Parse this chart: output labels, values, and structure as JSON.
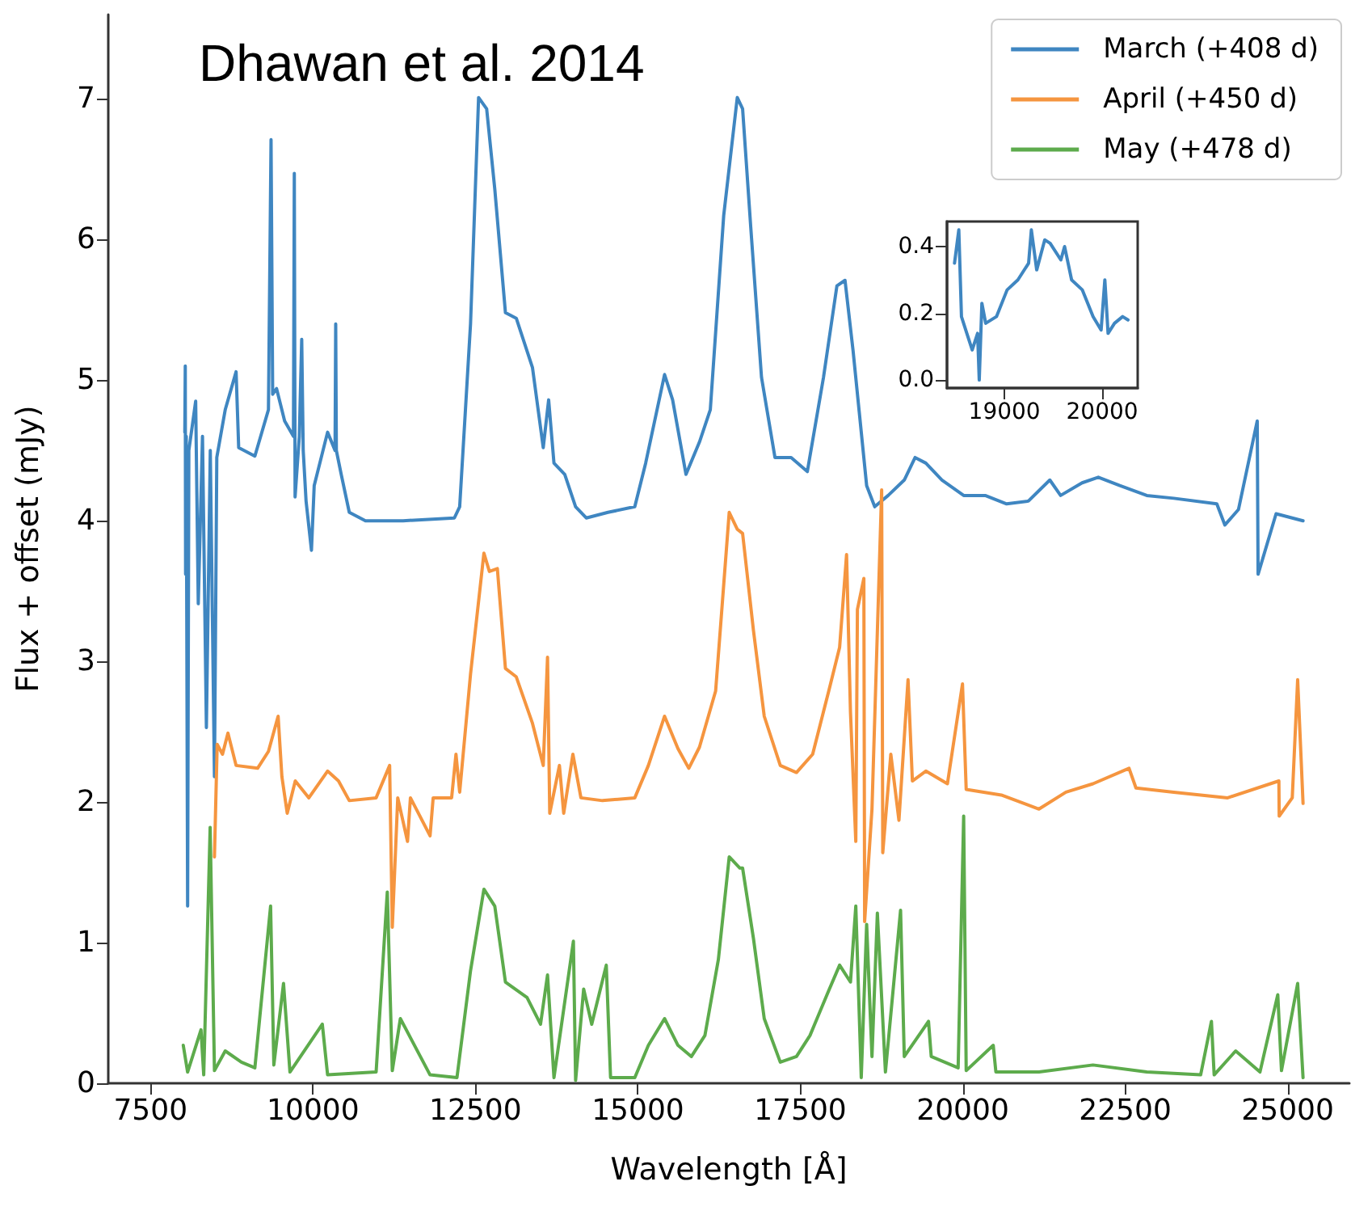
{
  "chart_data": [
    {
      "type": "line",
      "annotations": [
        "Dhawan et al. 2014"
      ],
      "xlabel": "Wavelength [Å]",
      "ylabel": "Flux + offset (mJy)",
      "xlim": [
        6850,
        25950
      ],
      "xticks": [
        7500,
        10000,
        12500,
        15000,
        17500,
        20000,
        22500,
        25000
      ],
      "ylim": [
        0,
        7.6
      ],
      "yticks": [
        0,
        1,
        2,
        3,
        4,
        5,
        6,
        7
      ],
      "grid": false,
      "legend": "top right",
      "marker": "none",
      "line_style": "solid",
      "series": [
        {
          "name": "March (+408 d)",
          "color": "#3f86c1",
          "x": [
            8028,
            8035,
            8040,
            8050,
            8071,
            8090,
            8195,
            8235,
            8300,
            8360,
            8420,
            8484,
            8520,
            8650,
            8817,
            8857,
            9106,
            9315,
            9355,
            9380,
            9440,
            9564,
            9700,
            9713,
            9725,
            9790,
            9827,
            9850,
            9894,
            9977,
            10019,
            10225,
            10340,
            10350,
            10360,
            10435,
            10559,
            10808,
            11387,
            12176,
            12258,
            12425,
            12549,
            12673,
            12798,
            12962,
            13129,
            13378,
            13544,
            13627,
            13709,
            13875,
            14042,
            14206,
            14540,
            14953,
            15120,
            15411,
            15535,
            15741,
            15948,
            16115,
            16321,
            16530,
            16612,
            16737,
            16903,
            17110,
            17359,
            17608,
            17857,
            18063,
            18188,
            18312,
            18521,
            18645,
            18852,
            19100,
            19267,
            19432,
            19680,
            20014,
            20345,
            20675,
            21009,
            21340,
            21506,
            21837,
            22086,
            22417,
            22832,
            23248,
            23910,
            24034,
            24243,
            24532,
            24545,
            24822,
            25071,
            25237
          ],
          "values": [
            4.63,
            5.1,
            3.62,
            4.6,
            1.26,
            4.5,
            4.85,
            3.41,
            4.6,
            2.53,
            4.5,
            2.18,
            4.45,
            4.79,
            5.06,
            4.52,
            4.46,
            4.79,
            6.71,
            4.9,
            4.94,
            4.71,
            4.6,
            6.47,
            4.17,
            4.6,
            5.29,
            4.5,
            4.14,
            3.79,
            4.25,
            4.63,
            4.5,
            5.4,
            4.5,
            4.33,
            4.06,
            4.0,
            4.0,
            4.02,
            4.1,
            5.4,
            7.01,
            6.93,
            6.36,
            5.48,
            5.44,
            5.09,
            4.52,
            4.86,
            4.41,
            4.33,
            4.1,
            4.02,
            4.06,
            4.1,
            4.41,
            5.04,
            4.86,
            4.33,
            4.56,
            4.79,
            6.17,
            7.01,
            6.93,
            6.09,
            5.02,
            4.45,
            4.45,
            4.35,
            5.02,
            5.67,
            5.71,
            5.21,
            4.25,
            4.1,
            4.18,
            4.29,
            4.45,
            4.41,
            4.29,
            4.18,
            4.18,
            4.12,
            4.14,
            4.29,
            4.18,
            4.27,
            4.31,
            4.25,
            4.18,
            4.16,
            4.12,
            3.97,
            4.08,
            4.71,
            3.62,
            4.05,
            4.02,
            4.0
          ]
        },
        {
          "name": "April (+450 d)",
          "color": "#f5953f",
          "x": [
            8484,
            8526,
            8608,
            8692,
            8817,
            9148,
            9315,
            9464,
            9522,
            9604,
            9728,
            9937,
            10225,
            10393,
            10559,
            10972,
            11180,
            11221,
            11305,
            11455,
            11500,
            11802,
            11850,
            12134,
            12201,
            12258,
            12425,
            12631,
            12715,
            12838,
            12962,
            13129,
            13378,
            13544,
            13610,
            13644,
            13793,
            13859,
            14000,
            14124,
            14455,
            14953,
            15162,
            15411,
            15617,
            15784,
            15948,
            16197,
            16406,
            16530,
            16612,
            16779,
            16945,
            17192,
            17441,
            17690,
            17938,
            18105,
            18212,
            18272,
            18354,
            18379,
            18478,
            18490,
            18603,
            18752,
            18769,
            18893,
            19018,
            19158,
            19225,
            19432,
            19764,
            19996,
            20053,
            20593,
            21173,
            21588,
            22004,
            22559,
            22666,
            23248,
            24077,
            24865,
            24870,
            25071,
            25154,
            25237
          ],
          "values": [
            1.61,
            2.41,
            2.34,
            2.49,
            2.26,
            2.24,
            2.36,
            2.61,
            2.18,
            1.92,
            2.15,
            2.03,
            2.22,
            2.15,
            2.01,
            2.03,
            2.26,
            1.11,
            2.03,
            1.72,
            2.03,
            1.76,
            2.03,
            2.03,
            2.34,
            2.07,
            2.91,
            3.77,
            3.64,
            3.66,
            2.95,
            2.89,
            2.56,
            2.26,
            3.03,
            1.92,
            2.26,
            1.92,
            2.34,
            2.03,
            2.01,
            2.03,
            2.26,
            2.61,
            2.38,
            2.24,
            2.39,
            2.79,
            4.06,
            3.94,
            3.91,
            3.22,
            2.61,
            2.26,
            2.21,
            2.34,
            2.79,
            3.1,
            3.76,
            2.64,
            1.72,
            3.37,
            3.59,
            1.15,
            1.95,
            4.22,
            1.64,
            2.34,
            1.87,
            2.87,
            2.15,
            2.22,
            2.13,
            2.84,
            2.09,
            2.05,
            1.95,
            2.07,
            2.13,
            2.24,
            2.1,
            2.07,
            2.03,
            2.15,
            1.9,
            2.03,
            2.87,
            1.99
          ]
        },
        {
          "name": "May (+478 d)",
          "color": "#5dab4c",
          "x": [
            8004,
            8071,
            8277,
            8319,
            8418,
            8484,
            8650,
            8899,
            9106,
            9348,
            9398,
            9547,
            9646,
            10144,
            10225,
            10972,
            11144,
            11221,
            11345,
            11802,
            12216,
            12425,
            12631,
            12798,
            12962,
            13294,
            13502,
            13610,
            13709,
            14008,
            14042,
            14166,
            14290,
            14514,
            14580,
            14953,
            15162,
            15411,
            15617,
            15824,
            16032,
            16239,
            16406,
            16570,
            16612,
            16779,
            16945,
            17192,
            17441,
            17649,
            17938,
            18105,
            18272,
            18354,
            18438,
            18521,
            18603,
            18686,
            18810,
            19043,
            19100,
            19473,
            19515,
            19929,
            20014,
            20053,
            20469,
            20510,
            21173,
            22004,
            22832,
            23661,
            23827,
            23869,
            24200,
            24574,
            24848,
            24905,
            25154,
            25237
          ],
          "values": [
            0.27,
            0.08,
            0.38,
            0.06,
            1.82,
            0.09,
            0.23,
            0.15,
            0.11,
            1.26,
            0.13,
            0.71,
            0.08,
            0.42,
            0.06,
            0.08,
            1.36,
            0.09,
            0.46,
            0.06,
            0.04,
            0.8,
            1.38,
            1.26,
            0.72,
            0.61,
            0.42,
            0.77,
            0.04,
            1.01,
            0.02,
            0.67,
            0.42,
            0.84,
            0.04,
            0.04,
            0.27,
            0.46,
            0.27,
            0.19,
            0.34,
            0.88,
            1.61,
            1.53,
            1.53,
            1.03,
            0.46,
            0.15,
            0.19,
            0.34,
            0.66,
            0.84,
            0.72,
            1.26,
            0.04,
            1.13,
            0.19,
            1.21,
            0.08,
            1.23,
            0.19,
            0.44,
            0.19,
            0.11,
            1.9,
            0.09,
            0.27,
            0.08,
            0.08,
            0.13,
            0.08,
            0.06,
            0.44,
            0.06,
            0.23,
            0.08,
            0.63,
            0.09,
            0.71,
            0.04
          ]
        }
      ]
    },
    {
      "type": "line",
      "xlim": [
        18412,
        20363
      ],
      "xticks": [
        19000,
        20000
      ],
      "ylim": [
        -0.024,
        0.475
      ],
      "yticks": [
        {
          "value": 0,
          "label": "0.0"
        },
        {
          "value": 0.2,
          "label": "0.2"
        },
        {
          "value": 0.4,
          "label": "0.4"
        }
      ],
      "grid": false,
      "marker": "none",
      "line_style": "solid",
      "series": [
        {
          "color": "#3f86c1",
          "x": [
            18489,
            18533,
            18560,
            18615,
            18670,
            18725,
            18742,
            18769,
            18808,
            18918,
            19027,
            19137,
            19247,
            19275,
            19330,
            19412,
            19467,
            19577,
            19615,
            19687,
            19797,
            19907,
            19989,
            20027,
            20060,
            20126,
            20209,
            20264
          ],
          "values": [
            0.35,
            0.45,
            0.19,
            0.14,
            0.09,
            0.14,
            0.0,
            0.23,
            0.17,
            0.19,
            0.27,
            0.3,
            0.35,
            0.45,
            0.33,
            0.42,
            0.41,
            0.36,
            0.4,
            0.3,
            0.27,
            0.19,
            0.15,
            0.3,
            0.14,
            0.17,
            0.19,
            0.18
          ]
        }
      ]
    }
  ]
}
